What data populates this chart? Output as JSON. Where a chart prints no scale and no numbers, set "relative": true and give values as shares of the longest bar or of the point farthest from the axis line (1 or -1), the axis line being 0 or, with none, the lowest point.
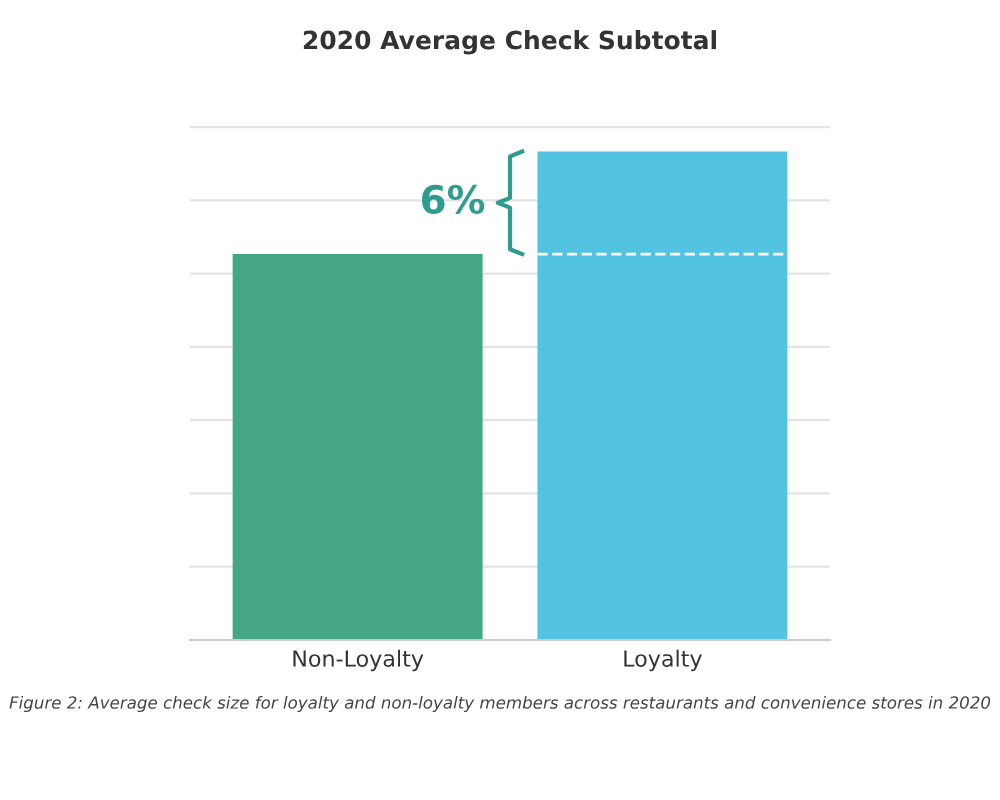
{
  "chart_data": {
    "type": "bar",
    "title": "2020 Average Check Subtotal",
    "categories": [
      "Non-Loyalty",
      "Loyalty"
    ],
    "colors": [
      "#46a784",
      "#52c3e0"
    ],
    "values": [
      0.79,
      1
    ],
    "relative": true,
    "grid": "y",
    "annotations": [
      "6%",
      "Figure 2: Average check size for loyalty and non-loyalty members across restaurants and convenience stores in 2020"
    ]
  }
}
